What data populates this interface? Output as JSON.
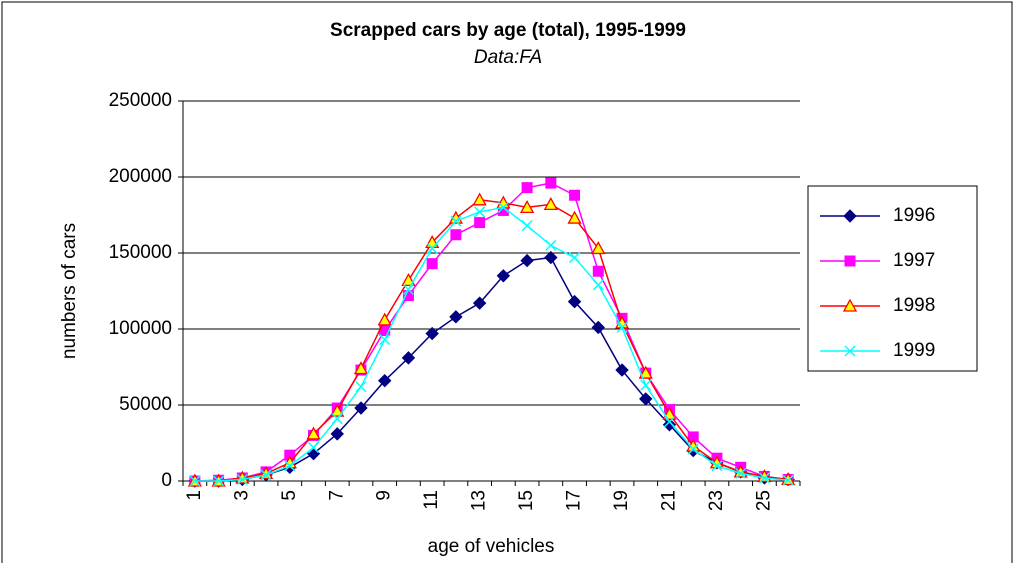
{
  "chart_data": {
    "type": "line",
    "title": "Scrapped cars by age (total), 1995-1999",
    "subtitle": "Data:FA",
    "x_label": "age of vehicles",
    "y_label": "numbers of cars",
    "categories": [
      "1",
      null,
      "3",
      null,
      "5",
      null,
      "7",
      null,
      "9",
      null,
      "11",
      null,
      "13",
      null,
      "15",
      null,
      "17",
      null,
      "19",
      null,
      "21",
      null,
      "23",
      null,
      "25",
      null
    ],
    "ylim": [
      0,
      250000
    ],
    "yticks": [
      0,
      50000,
      100000,
      150000,
      200000,
      250000
    ],
    "grid": true,
    "legend": "right",
    "series": [
      {
        "name": "1996",
        "color": "#000080",
        "marker": "diamond",
        "marker_fill": "#000080",
        "values": [
          0,
          0,
          1000,
          4000,
          9000,
          18000,
          31000,
          48000,
          66000,
          81000,
          97000,
          108000,
          117000,
          135000,
          145000,
          147000,
          118000,
          101000,
          73000,
          54000,
          37000,
          20000,
          12000,
          6000,
          2000,
          1000
        ]
      },
      {
        "name": "1997",
        "color": "#ff00ff",
        "marker": "square",
        "marker_fill": "#ff00ff",
        "values": [
          0,
          500,
          2000,
          6000,
          17000,
          30000,
          48000,
          73000,
          99000,
          122000,
          143000,
          162000,
          170000,
          178000,
          193000,
          196000,
          188000,
          138000,
          107000,
          71000,
          47000,
          29000,
          15000,
          9000,
          3000,
          1000
        ]
      },
      {
        "name": "1998",
        "color": "#ff0000",
        "marker": "triangle",
        "marker_fill": "#ffff00",
        "values": [
          0,
          0,
          2000,
          5000,
          12000,
          31000,
          46000,
          74000,
          106000,
          132000,
          157000,
          173000,
          185000,
          183000,
          180000,
          182000,
          173000,
          153000,
          104000,
          71000,
          44000,
          23000,
          12000,
          6000,
          3000,
          1000
        ]
      },
      {
        "name": "1999",
        "color": "#00ffff",
        "marker": "x",
        "marker_fill": "#00ffff",
        "values": [
          0,
          0,
          1000,
          4000,
          10000,
          22000,
          41000,
          62000,
          93000,
          126000,
          153000,
          171000,
          177000,
          180000,
          168000,
          155000,
          147000,
          129000,
          101000,
          63000,
          39000,
          21000,
          10000,
          5000,
          2000,
          500
        ]
      }
    ]
  }
}
